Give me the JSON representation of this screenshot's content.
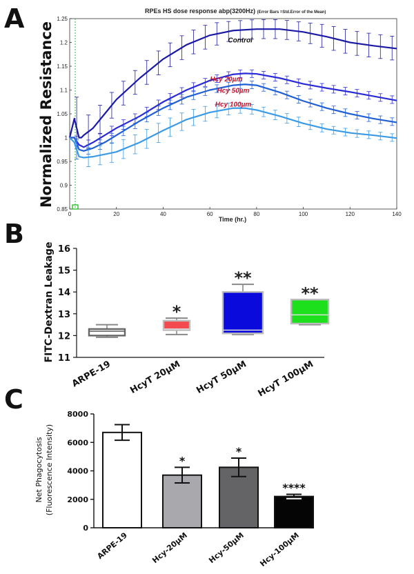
{
  "panels": {
    "a": "A",
    "b": "B",
    "c": "C"
  },
  "chart_data": [
    {
      "type": "line",
      "title": "RPEs  HS dose response abp(3200Hz)",
      "subtitle": "(Error Bars =Std.Error of the Mean)",
      "xlabel": "Time (hr.)",
      "ylabel": "Normalized Resistance",
      "xlim": [
        0,
        140
      ],
      "ylim": [
        0.85,
        1.25
      ],
      "xticks": [
        0,
        20,
        40,
        60,
        80,
        100,
        120,
        140
      ],
      "xtick_labels": [
        "0",
        "20",
        "40",
        "60",
        "80",
        "100",
        "120",
        "140"
      ],
      "yticks": [
        0.85,
        0.9,
        0.95,
        1.0,
        1.05,
        1.1,
        1.15,
        1.2,
        1.25
      ],
      "ytick_labels": [
        "0.85",
        "0.9",
        "0.95",
        "1",
        "1.05",
        "1.1",
        "1.15",
        "1.2",
        "1.25"
      ],
      "series": [
        {
          "name": "Control",
          "color": "#1a1aa6",
          "label_color": "#111111",
          "x": [
            0,
            2,
            4,
            5,
            6,
            10,
            15,
            20,
            30,
            40,
            50,
            60,
            70,
            80,
            90,
            100,
            110,
            120,
            130,
            140
          ],
          "y": [
            1.0,
            1.04,
            1.0,
            1.0,
            1.005,
            1.02,
            1.05,
            1.08,
            1.125,
            1.165,
            1.195,
            1.215,
            1.225,
            1.228,
            1.228,
            1.222,
            1.212,
            1.2,
            1.193,
            1.187
          ],
          "err": [
            0,
            0.08,
            0.05,
            0.04,
            0.04,
            0.03,
            0.03,
            0.025,
            0.025,
            0.025,
            0.025,
            0.025,
            0.02,
            0.02,
            0.02,
            0.02,
            0.025,
            0.025,
            0.025,
            0.025
          ]
        },
        {
          "name": "Hcy 20µm",
          "color": "#2a2ad6",
          "label_color": "#c0152f",
          "x": [
            0,
            2,
            4,
            6,
            10,
            15,
            20,
            30,
            40,
            50,
            60,
            70,
            75,
            80,
            90,
            100,
            110,
            120,
            130,
            140
          ],
          "y": [
            1.0,
            1.0,
            0.985,
            0.98,
            0.99,
            1.005,
            1.02,
            1.045,
            1.075,
            1.1,
            1.12,
            1.133,
            1.135,
            1.134,
            1.125,
            1.113,
            1.104,
            1.096,
            1.087,
            1.078
          ],
          "err": [
            0,
            0.01,
            0.01,
            0.01,
            0.01,
            0.01,
            0.01,
            0.01,
            0.01,
            0.01,
            0.008,
            0.008,
            0.008,
            0.008,
            0.008,
            0.008,
            0.008,
            0.008,
            0.008,
            0.008
          ]
        },
        {
          "name": "Hcy 50µm",
          "color": "#1f5fd6",
          "label_color": "#c0152f",
          "x": [
            0,
            2,
            4,
            6,
            10,
            15,
            20,
            30,
            40,
            50,
            60,
            70,
            75,
            80,
            90,
            100,
            110,
            120,
            130,
            140
          ],
          "y": [
            1.0,
            1.0,
            0.975,
            0.972,
            0.978,
            0.99,
            1.005,
            1.035,
            1.062,
            1.085,
            1.1,
            1.11,
            1.112,
            1.11,
            1.095,
            1.077,
            1.062,
            1.05,
            1.04,
            1.032
          ],
          "err": [
            0,
            0.01,
            0.01,
            0.01,
            0.01,
            0.01,
            0.01,
            0.01,
            0.01,
            0.01,
            0.008,
            0.008,
            0.008,
            0.008,
            0.008,
            0.008,
            0.008,
            0.008,
            0.008,
            0.008
          ]
        },
        {
          "name": "Hcy 100µm",
          "color": "#3a9ae6",
          "label_color": "#c0152f",
          "x": [
            0,
            2,
            4,
            6,
            10,
            15,
            20,
            30,
            40,
            50,
            60,
            70,
            75,
            80,
            90,
            100,
            110,
            120,
            130,
            140
          ],
          "y": [
            1.0,
            0.99,
            0.96,
            0.958,
            0.96,
            0.965,
            0.97,
            0.99,
            1.015,
            1.038,
            1.053,
            1.062,
            1.062,
            1.058,
            1.045,
            1.03,
            1.018,
            1.01,
            1.005,
            0.999
          ],
          "err": [
            0,
            0.02,
            0.02,
            0.02,
            0.02,
            0.02,
            0.02,
            0.02,
            0.02,
            0.018,
            0.015,
            0.012,
            0.01,
            0.01,
            0.01,
            0.01,
            0.008,
            0.008,
            0.008,
            0.008
          ]
        }
      ]
    },
    {
      "type": "boxplot",
      "ylabel": "FITC-Dextran Leakage",
      "ylim": [
        11,
        16
      ],
      "yticks": [
        11,
        12,
        13,
        14,
        15,
        16
      ],
      "ytick_labels": [
        "11",
        "12",
        "13",
        "14",
        "15",
        "16"
      ],
      "categories": [
        "ARPE-19",
        "HcyT 20µM",
        "HcyT 50µM",
        "HcyT 100µM"
      ],
      "boxes": [
        {
          "min": 11.92,
          "q1": 12.0,
          "median": 12.2,
          "q3": 12.3,
          "max": 12.5,
          "color": "#ffffff",
          "sig": ""
        },
        {
          "min": 12.05,
          "q1": 12.25,
          "median": 12.3,
          "q3": 12.68,
          "max": 12.8,
          "color": "#f24a4f",
          "sig": "*"
        },
        {
          "min": 12.05,
          "q1": 12.1,
          "median": 12.25,
          "q3": 14.0,
          "max": 14.35,
          "color": "#0a0adc",
          "sig": "**"
        },
        {
          "min": 12.5,
          "q1": 12.55,
          "median": 12.95,
          "q3": 13.65,
          "max": 13.65,
          "color": "#1de01d",
          "sig": "**"
        }
      ]
    },
    {
      "type": "bar",
      "ylabel": "Net Phagocytosis",
      "ylabel2": "(Fluorescence Intensity)",
      "ylim": [
        0,
        8000
      ],
      "yticks": [
        0,
        2000,
        4000,
        6000,
        8000
      ],
      "ytick_labels": [
        "0",
        "2000",
        "4000",
        "6000",
        "8000"
      ],
      "categories": [
        "ARPE-19",
        "Hcy-20µM",
        "Hcy-50µM",
        "Hcy-100µM"
      ],
      "values": [
        6700,
        3700,
        4250,
        2200
      ],
      "errors": [
        550,
        550,
        650,
        150
      ],
      "colors": [
        "#ffffff",
        "#a8a8ad",
        "#646466",
        "#050505"
      ],
      "significance": [
        "",
        "*",
        "*",
        "****"
      ]
    }
  ]
}
